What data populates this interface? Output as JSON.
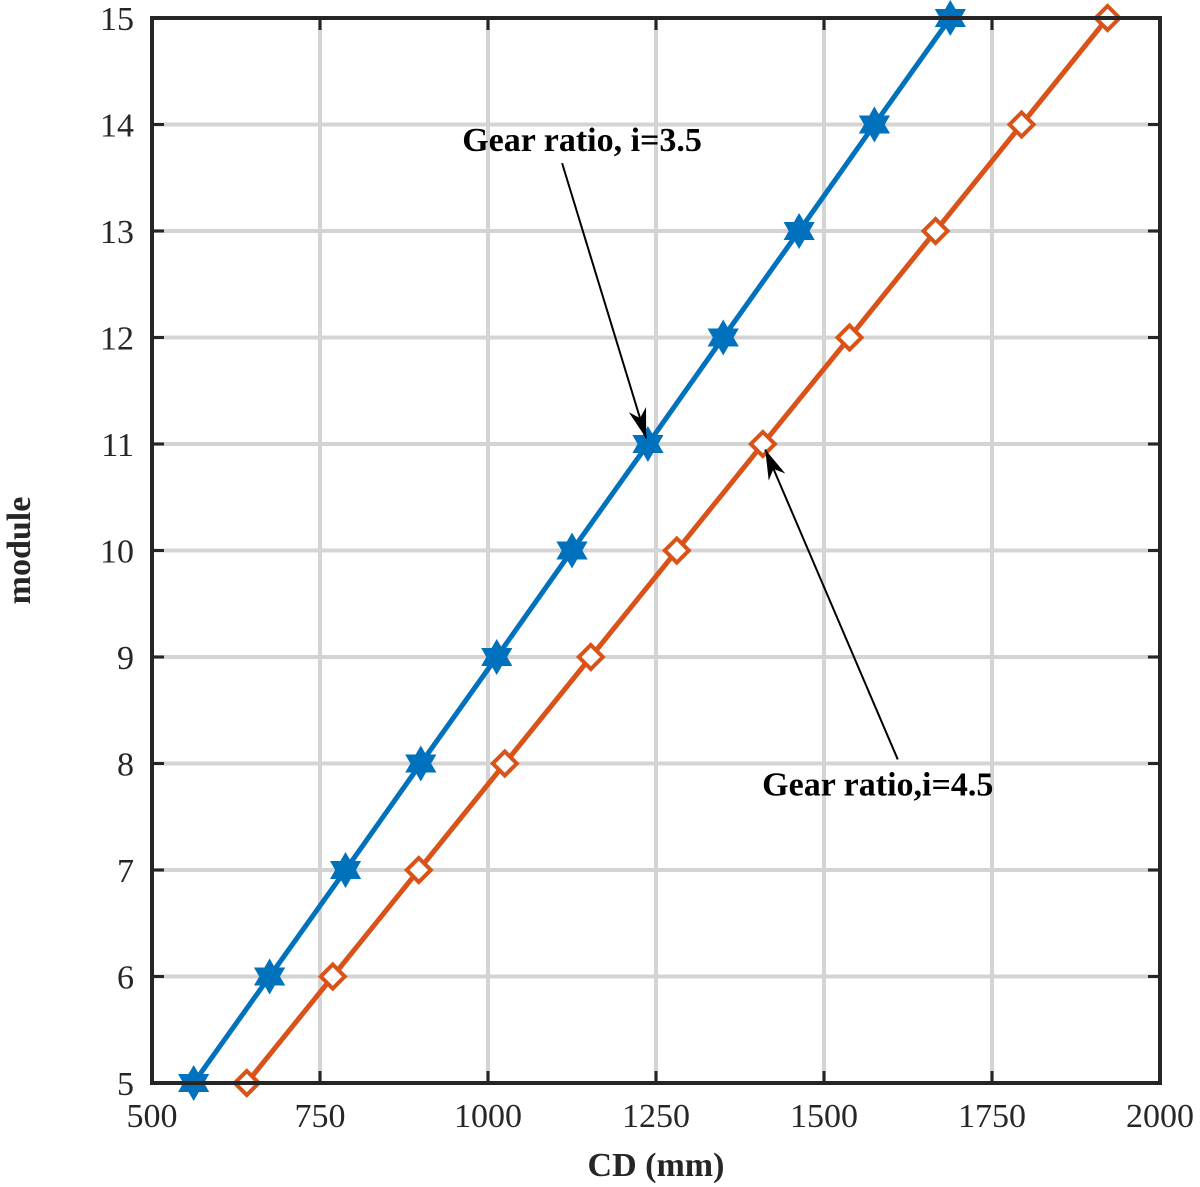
{
  "chart_data": {
    "type": "line",
    "title": "",
    "xlabel": "CD (mm)",
    "ylabel": "module",
    "xlim": [
      500,
      2000
    ],
    "ylim": [
      5,
      15
    ],
    "xticks": [
      500,
      750,
      1000,
      1250,
      1500,
      1750,
      2000
    ],
    "yticks": [
      5,
      6,
      7,
      8,
      9,
      10,
      11,
      12,
      13,
      14,
      15
    ],
    "grid": true,
    "series": [
      {
        "marker": "hexagram",
        "color": "#0072BD",
        "x": [
          562,
          675,
          788,
          900,
          1013,
          1125,
          1238,
          1350,
          1463,
          1575,
          1688
        ],
        "y": [
          5,
          6,
          7,
          8,
          9,
          10,
          11,
          12,
          13,
          14,
          15
        ]
      },
      {
        "marker": "diamond",
        "color": "#D95319",
        "x": [
          641,
          769,
          897,
          1025,
          1153,
          1281,
          1409,
          1538,
          1666,
          1794,
          1922
        ],
        "y": [
          5,
          6,
          7,
          8,
          9,
          10,
          11,
          12,
          13,
          14,
          15
        ]
      }
    ],
    "annotations": [
      {
        "text": "Gear ratio, i=3.5",
        "x": 1140,
        "y": 13.75,
        "point_x": 1238,
        "point_y": 11
      },
      {
        "text": "Gear ratio,i=4.5",
        "x": 1580,
        "y": 7.7,
        "point_x": 1409,
        "point_y": 11
      }
    ]
  }
}
